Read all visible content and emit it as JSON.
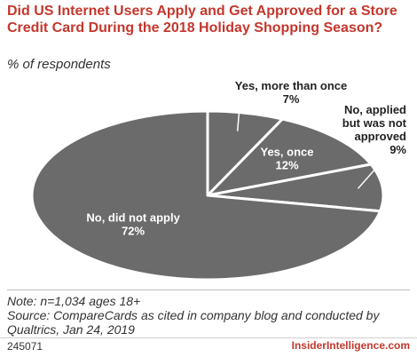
{
  "header": {
    "title": "Did US Internet Users Apply and Get Approved for a Store Credit Card During the 2018 Holiday Shopping Season?",
    "subtitle": "% of respondents"
  },
  "chart_data": {
    "type": "pie",
    "slices": [
      {
        "label": "Yes, more than once",
        "value": 7,
        "value_label": "7%",
        "label_position": "outside-top"
      },
      {
        "label": "Yes, once",
        "value": 12,
        "value_label": "12%",
        "label_position": "inside"
      },
      {
        "label": "No, applied but was not approved",
        "value": 9,
        "value_label": "9%",
        "label_position": "outside-right"
      },
      {
        "label": "No, did not apply",
        "value": 72,
        "value_label": "72%",
        "label_position": "inside"
      }
    ],
    "unit": "% of respondents",
    "colors": {
      "fill": "#6b6b6b",
      "separator": "#ffffff",
      "label": "#ffffff",
      "outside_label": "#222222"
    },
    "legend": "none"
  },
  "footer": {
    "note": "Note: n=1,034 ages 18+",
    "source": "Source: CompareCards as cited in company blog and conducted by Qualtrics, Jan 24, 2019",
    "chart_id": "245071",
    "brand": "InsiderIntelligence.com"
  }
}
